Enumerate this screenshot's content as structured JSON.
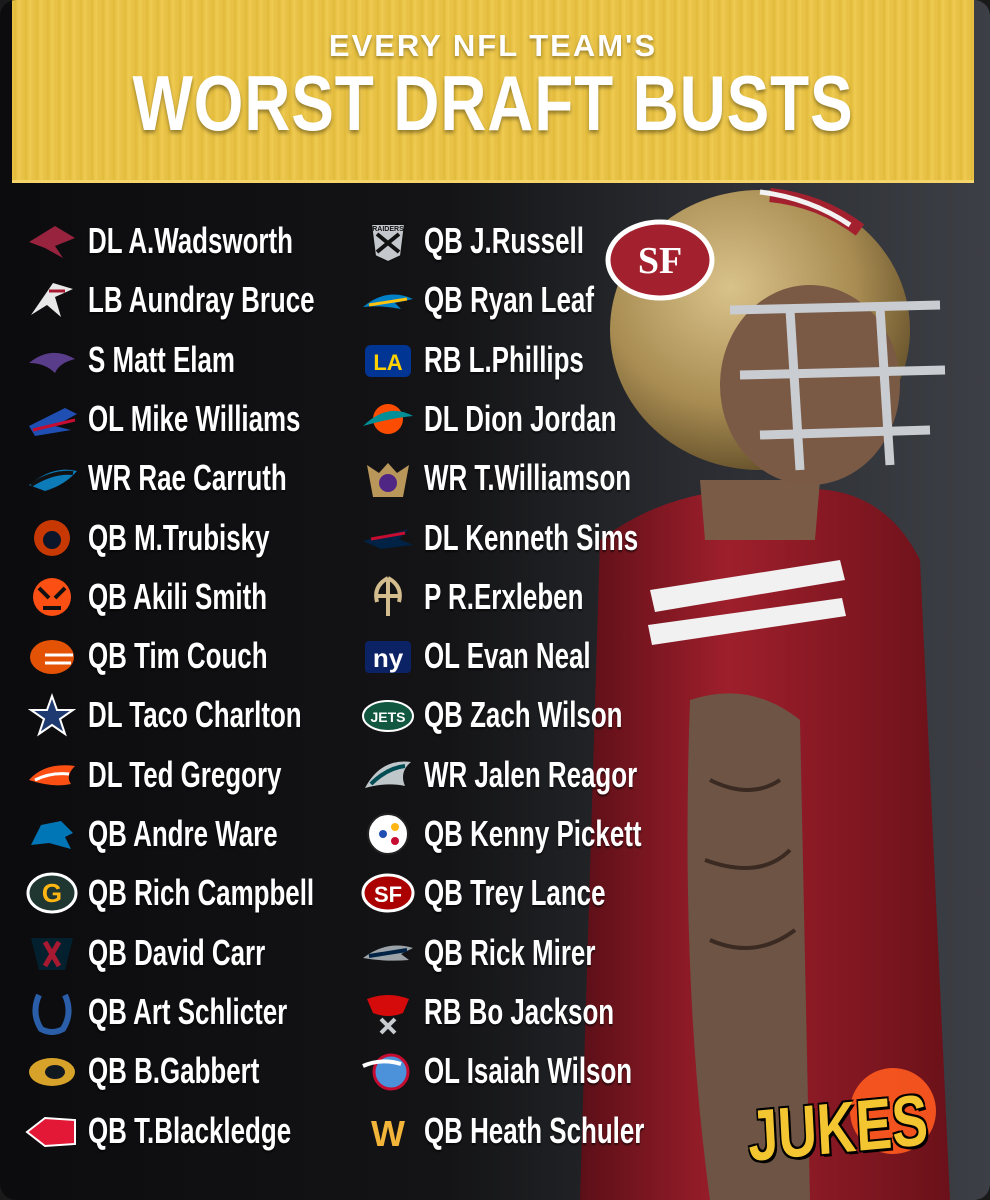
{
  "header": {
    "subtitle": "EVERY NFL TEAM'S",
    "title": "WORST DRAFT BUSTS"
  },
  "colors": {
    "header_yellow": "#e9c448",
    "background": "#121214",
    "text": "#ffffff",
    "niners_red": "#a3212e",
    "niners_gold": "#b3995d"
  },
  "left_column": [
    {
      "team_icon": "cardinals-icon",
      "pick": "DL A.Wadsworth"
    },
    {
      "team_icon": "falcons-icon",
      "pick": "LB Aundray Bruce"
    },
    {
      "team_icon": "ravens-icon",
      "pick": "S Matt Elam"
    },
    {
      "team_icon": "bills-icon",
      "pick": "OL Mike Williams"
    },
    {
      "team_icon": "panthers-icon",
      "pick": "WR Rae Carruth"
    },
    {
      "team_icon": "bears-icon",
      "pick": "QB M.Trubisky"
    },
    {
      "team_icon": "bengals-icon",
      "pick": "QB Akili Smith"
    },
    {
      "team_icon": "browns-icon",
      "pick": "QB Tim Couch"
    },
    {
      "team_icon": "cowboys-icon",
      "pick": "DL Taco Charlton"
    },
    {
      "team_icon": "broncos-icon",
      "pick": "DL Ted Gregory"
    },
    {
      "team_icon": "lions-icon",
      "pick": "QB Andre Ware"
    },
    {
      "team_icon": "packers-icon",
      "pick": "QB Rich Campbell"
    },
    {
      "team_icon": "texans-icon",
      "pick": "QB David Carr"
    },
    {
      "team_icon": "colts-icon",
      "pick": "QB Art Schlicter"
    },
    {
      "team_icon": "jaguars-icon",
      "pick": "QB B.Gabbert"
    },
    {
      "team_icon": "chiefs-icon",
      "pick": "QB T.Blackledge"
    }
  ],
  "right_column": [
    {
      "team_icon": "raiders-icon",
      "logo_text": "RAIDERS",
      "pick": "QB J.Russell"
    },
    {
      "team_icon": "chargers-icon",
      "pick": "QB Ryan Leaf"
    },
    {
      "team_icon": "rams-icon",
      "pick": "RB L.Phillips"
    },
    {
      "team_icon": "dolphins-icon",
      "pick": "DL Dion Jordan"
    },
    {
      "team_icon": "vikings-icon",
      "pick": "WR T.Williamson"
    },
    {
      "team_icon": "patriots-icon",
      "pick": "DL Kenneth Sims"
    },
    {
      "team_icon": "saints-icon",
      "pick": "P R.Erxleben"
    },
    {
      "team_icon": "giants-icon",
      "logo_text": "ny",
      "pick": "OL Evan Neal"
    },
    {
      "team_icon": "jets-icon",
      "logo_text": "JETS",
      "pick": "QB Zach Wilson"
    },
    {
      "team_icon": "eagles-icon",
      "pick": "WR Jalen Reagor"
    },
    {
      "team_icon": "steelers-icon",
      "pick": "QB Kenny Pickett"
    },
    {
      "team_icon": "49ers-icon",
      "logo_text": "SF",
      "pick": "QB Trey Lance"
    },
    {
      "team_icon": "seahawks-icon",
      "pick": "QB Rick Mirer"
    },
    {
      "team_icon": "buccaneers-icon",
      "pick": "RB Bo Jackson"
    },
    {
      "team_icon": "titans-icon",
      "pick": "OL Isaiah Wilson"
    },
    {
      "team_icon": "commanders-icon",
      "logo_text": "W",
      "pick": "QB Heath Schuler"
    }
  ],
  "player": {
    "helmet_logo": "SF"
  },
  "watermark": {
    "brand": "JUKES"
  }
}
